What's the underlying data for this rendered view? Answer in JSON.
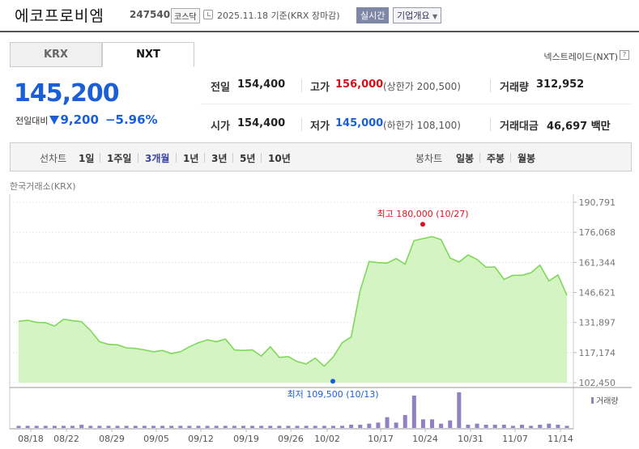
{
  "header": {
    "company_name": "에코프로비엠",
    "stock_code": "247540",
    "market": "코스닥",
    "date": "2025.11.18  기준(KRX 장마감)",
    "realtime_label": "실시간",
    "company_info_label": "기업개요"
  },
  "tabs": [
    {
      "label": "KRX",
      "active": false
    },
    {
      "label": "NXT",
      "active": true
    }
  ],
  "exchange_label": "넥스트레이드(NXT)",
  "help_icon": "?",
  "price": {
    "current": "145,200",
    "change_label": "전일대비",
    "change_amount": "9,200",
    "change_rate": "−5.96%",
    "direction": "down"
  },
  "stats": {
    "prev_close_label": "전일",
    "prev_close": "154,400",
    "high_label": "고가",
    "high": "156,000",
    "upper_limit": "(상한가 200,500)",
    "volume_label": "거래량",
    "volume": "312,952",
    "open_label": "시가",
    "open": "154,400",
    "low_label": "저가",
    "low": "145,000",
    "lower_limit": "(하한가 108,100)",
    "amount_label": "거래대금",
    "amount": "46,697 백만"
  },
  "period": {
    "line_title": "선차트",
    "line_items": [
      "1일",
      "1주일",
      "3개월",
      "1년",
      "3년",
      "5년",
      "10년"
    ],
    "active": "3개월",
    "candle_title": "봉차트",
    "candle_items": [
      "일봉",
      "주봉",
      "월봉"
    ]
  },
  "source_label": "한국거래소(KRX)",
  "colors": {
    "price_down": "#1a5fd6",
    "price_up": "#d31216",
    "line": "#7fd85a",
    "area": "#ccf3b9",
    "volume_bar": "#9080c4",
    "active_tab": "#3945a5"
  },
  "chart_data": {
    "type": "area",
    "y_ticks": [
      "190,791",
      "176,068",
      "161,344",
      "146,621",
      "131,897",
      "117,174",
      "102,450"
    ],
    "ylim": [
      102450,
      190791
    ],
    "x_ticks": [
      "08/18",
      "08/22",
      "08/29",
      "09/05",
      "09/12",
      "09/19",
      "09/26",
      "10/02",
      "10/17",
      "10/24",
      "10/31",
      "11/07",
      "11/14"
    ],
    "series": [
      {
        "values": [
          132500,
          133000,
          132000,
          131800,
          130200,
          133500,
          132800,
          132300,
          128000,
          122500,
          121200,
          121000,
          119500,
          119200,
          118500,
          117600,
          118200,
          116700,
          117600,
          120000,
          122000,
          123400,
          122500,
          123800,
          118500,
          118200,
          118500,
          115500,
          120000,
          114800,
          115200,
          112800,
          111600,
          114500,
          110500,
          115000,
          122000,
          124800,
          147500,
          161800,
          161200,
          161000,
          163200,
          160500,
          172000,
          173000,
          174000,
          172500,
          163500,
          161500,
          165000,
          162800,
          159000,
          159100,
          153000,
          155000,
          155000,
          156300,
          160000,
          152200,
          155200,
          145200
        ]
      }
    ],
    "annotations": [
      {
        "label": "최고 180,000 (10/27)",
        "value": 180000,
        "kind": "max"
      },
      {
        "label": "최저 109,500 (10/13)",
        "value": 109500,
        "kind": "min"
      }
    ],
    "volume_label": "거래량",
    "volume": [
      2,
      2,
      2,
      2,
      2,
      2,
      2,
      3,
      2,
      2,
      2,
      2,
      2,
      2,
      2,
      2,
      2,
      2,
      2,
      2,
      2,
      2,
      2,
      2,
      2,
      2,
      2,
      2,
      2,
      2,
      2,
      2,
      2,
      2,
      2,
      2,
      2,
      3,
      3,
      4,
      5,
      10,
      5,
      12,
      30,
      8,
      8,
      4,
      7,
      33,
      3,
      4,
      3,
      3,
      3,
      2,
      3,
      2,
      3,
      4,
      3,
      2
    ]
  }
}
